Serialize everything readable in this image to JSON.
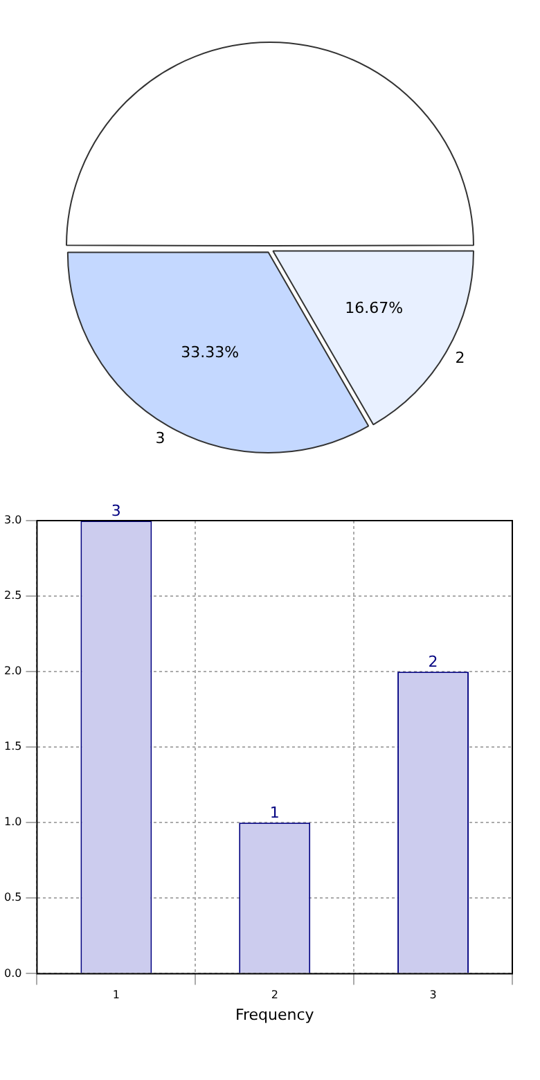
{
  "chart_data": [
    {
      "type": "pie",
      "categories": [
        null,
        "2",
        "3"
      ],
      "values": [
        50,
        16.67,
        33.33
      ],
      "colors": [
        "#ffffff",
        "#e8f0ff",
        "#c4d8ff"
      ],
      "value_labels": [
        null,
        "16.67%",
        "33.33%"
      ],
      "legend": false
    },
    {
      "type": "bar",
      "categories": [
        "1",
        "2",
        "3"
      ],
      "values": [
        3,
        1,
        2
      ],
      "color": "#ccccee",
      "xlabel": "Frequency",
      "ylim": [
        0,
        3
      ],
      "yticks": [
        {
          "value": 0,
          "label": "0.0"
        },
        {
          "value": 0.5,
          "label": "0.5"
        },
        {
          "value": 1,
          "label": "1.0"
        },
        {
          "value": 1.5,
          "label": "1.5"
        },
        {
          "value": 2,
          "label": "2.0"
        },
        {
          "value": 2.5,
          "label": "2.5"
        },
        {
          "value": 3,
          "label": "3.0"
        }
      ],
      "grid": true,
      "data_labels": true,
      "legend": false
    }
  ]
}
